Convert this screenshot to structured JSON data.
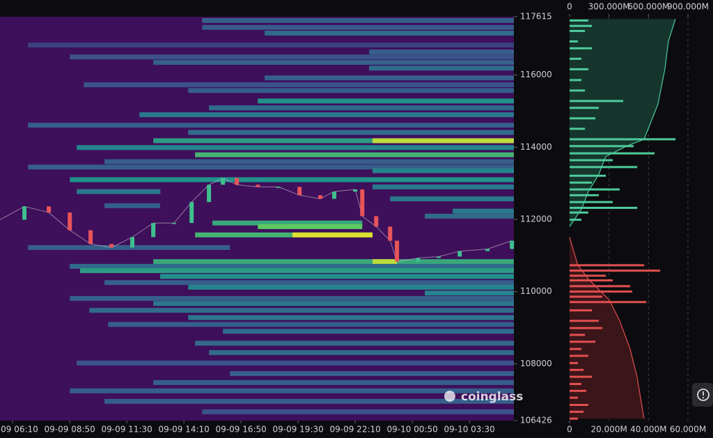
{
  "chart_data": [
    {
      "type": "heatmap",
      "xlim": [
        -0.59,
        23.41
      ],
      "xticks": [
        {
          "value": 0,
          "label": "09-09 06:10"
        },
        {
          "value": 2.667,
          "label": "09-09 08:50"
        },
        {
          "value": 5.333,
          "label": "09-09 11:30"
        },
        {
          "value": 8,
          "label": "09-09 14:10"
        },
        {
          "value": 10.667,
          "label": "09-09 16:50"
        },
        {
          "value": 13.333,
          "label": "09-09 19:30"
        },
        {
          "value": 16,
          "label": "09-09 22:10"
        },
        {
          "value": 18.667,
          "label": "09-10 00:50"
        },
        {
          "value": 21.333,
          "label": "09-10 03:30"
        }
      ],
      "ylim": [
        106426,
        117615
      ],
      "yticks": [
        106426,
        108000,
        110000,
        112000,
        114000,
        116000,
        117615
      ],
      "background": "#3e0f5a",
      "colormap": [
        "#440154",
        "#3b528b",
        "#21918c",
        "#5ec962",
        "#fde725"
      ],
      "bands": {
        "prices": [
          117510,
          117320,
          117160,
          116830,
          116640,
          116500,
          116350,
          116190,
          115920,
          115730,
          115570,
          115280,
          115090,
          114900,
          114610,
          114410,
          114180,
          114180,
          113990,
          113790,
          113600,
          113450,
          113350,
          113100,
          112900,
          112770,
          112570,
          112380,
          112230,
          112090,
          111900,
          111800,
          111570,
          111570,
          111220,
          110830,
          110830,
          110700,
          110580,
          110420,
          110250,
          110120,
          109960,
          109810,
          109670,
          109480,
          109280,
          109090,
          108900,
          108570,
          108310,
          108020,
          107730,
          107480,
          107250,
          106960,
          106670
        ],
        "starts": [
          8.85,
          8.85,
          11.77,
          0.72,
          16.65,
          2.67,
          6.57,
          16.65,
          11.77,
          3.32,
          8.2,
          11.45,
          9.17,
          5.92,
          0.72,
          8.2,
          6.57,
          16.81,
          2.99,
          8.52,
          4.29,
          0.72,
          16.81,
          2.67,
          16.81,
          2.99,
          17.63,
          4.29,
          20.55,
          19.25,
          9.33,
          11.45,
          8.52,
          13.07,
          0.72,
          6.57,
          16.81,
          2.67,
          3.15,
          6.89,
          4.29,
          8.2,
          19.25,
          2.67,
          6.57,
          3.58,
          8.2,
          4.46,
          9.82,
          8.52,
          9.17,
          2.99,
          10.15,
          6.57,
          2.67,
          4.29,
          8.85
        ],
        "ends": [
          23.41,
          23.41,
          23.41,
          23.41,
          23.41,
          23.41,
          23.41,
          23.41,
          23.41,
          23.41,
          23.41,
          23.41,
          23.41,
          23.41,
          23.41,
          23.41,
          23.41,
          23.41,
          23.41,
          23.41,
          23.41,
          23.41,
          23.41,
          23.41,
          23.41,
          6.9,
          23.41,
          6.89,
          23.41,
          23.41,
          16.33,
          16.33,
          16.81,
          16.81,
          10.15,
          23.41,
          17.95,
          23.41,
          23.41,
          23.41,
          23.41,
          23.41,
          23.41,
          23.41,
          23.41,
          23.41,
          23.41,
          23.41,
          23.41,
          23.41,
          23.41,
          23.41,
          23.41,
          23.41,
          23.41,
          23.41,
          23.41
        ],
        "intensities": [
          0.3,
          0.28,
          0.35,
          0.2,
          0.3,
          0.25,
          0.3,
          0.35,
          0.3,
          0.25,
          0.3,
          0.5,
          0.35,
          0.4,
          0.3,
          0.35,
          0.55,
          0.9,
          0.45,
          0.65,
          0.3,
          0.3,
          0.45,
          0.5,
          0.4,
          0.4,
          0.4,
          0.3,
          0.4,
          0.35,
          0.6,
          0.75,
          0.65,
          0.95,
          0.3,
          0.6,
          0.9,
          0.35,
          0.55,
          0.5,
          0.3,
          0.45,
          0.45,
          0.3,
          0.4,
          0.35,
          0.4,
          0.3,
          0.35,
          0.35,
          0.35,
          0.25,
          0.3,
          0.3,
          0.3,
          0.3,
          0.25
        ]
      },
      "price": {
        "up_color": "#3fbf8f",
        "down_color": "#e8555a",
        "line_color": "#c8c8d0",
        "x": [
          -0.59,
          0.55,
          1.69,
          2.67,
          3.64,
          4.62,
          5.59,
          6.57,
          7.54,
          8.36,
          9.17,
          9.82,
          10.47,
          11.45,
          12.42,
          13.4,
          14.37,
          15.02,
          16.0,
          16.33,
          16.98,
          17.63,
          17.95,
          18.93,
          19.9,
          20.88,
          22.18,
          23.32
        ],
        "values": [
          111990,
          112360,
          112190,
          111700,
          111320,
          111220,
          111510,
          111900,
          111900,
          112480,
          112960,
          113150,
          112960,
          112900,
          112900,
          112670,
          112570,
          112770,
          112830,
          112090,
          111800,
          111410,
          110830,
          110930,
          110970,
          111120,
          111180,
          111410
        ]
      },
      "watermark": "coinglass"
    },
    {
      "type": "liquidation-profile",
      "ylim": [
        106426,
        117615
      ],
      "xlim": [
        0,
        60
      ],
      "xticks": [
        0,
        {
          "value": 20,
          "label": "20.000M"
        },
        {
          "value": 40,
          "label": "40.000M"
        },
        {
          "value": 60,
          "label": "60.000M"
        }
      ],
      "x2lim": [
        0,
        900
      ],
      "x2ticks": [
        0,
        {
          "value": 300,
          "label": "300.000M"
        },
        {
          "value": 600,
          "label": "600.000M"
        },
        {
          "value": 900,
          "label": "900.000M"
        }
      ],
      "series": [
        {
          "color": "#4ecb9a",
          "fill": "#15352d",
          "prices": [
            117510,
            117360,
            117220,
            116930,
            116740,
            116450,
            116160,
            115860,
            115570,
            115280,
            115090,
            114800,
            114510,
            114220,
            114030,
            113830,
            113640,
            113450,
            113210,
            113020,
            112830,
            112670,
            112480,
            112320,
            112190,
            111990
          ],
          "values": [
            9.5,
            11.3,
            7.8,
            4.2,
            11.3,
            6,
            9.5,
            6,
            7.8,
            27.2,
            14.8,
            13.1,
            7.8,
            53.7,
            32.5,
            43.1,
            21.9,
            34.3,
            18.4,
            11.3,
            25.4,
            14.8,
            21.9,
            34.3,
            9.5,
            6
          ],
          "cumulative_prices": [
            117550,
            116930,
            116160,
            115190,
            114700,
            114220,
            114030,
            113740,
            113250,
            112770,
            112280,
            111800
          ],
          "cumulative_values": [
            804,
            751,
            725,
            672,
            619,
            566,
            434,
            275,
            222,
            143,
            90,
            0
          ]
        },
        {
          "color": "#e35050",
          "fill": "#3a1519",
          "prices": [
            110730,
            110580,
            110440,
            110310,
            110150,
            110000,
            109860,
            109710,
            109480,
            109190,
            108990,
            108800,
            108610,
            108410,
            108220,
            108020,
            107830,
            107640,
            107440,
            107250,
            107060,
            106860,
            106670,
            106480
          ],
          "values": [
            37.8,
            45.9,
            18.4,
            21.9,
            30.7,
            31.8,
            16.6,
            38.9,
            11.3,
            14.8,
            16.6,
            7.8,
            13.1,
            6,
            9.5,
            4.2,
            7.1,
            11.3,
            6,
            8.5,
            4.2,
            9.5,
            7.1,
            4.2
          ],
          "cumulative_prices": [
            111510,
            110730,
            110350,
            109770,
            109190,
            108410,
            107640,
            106480
          ],
          "cumulative_values": [
            0,
            63,
            143,
            302,
            381,
            460,
            513,
            566
          ]
        }
      ]
    }
  ]
}
